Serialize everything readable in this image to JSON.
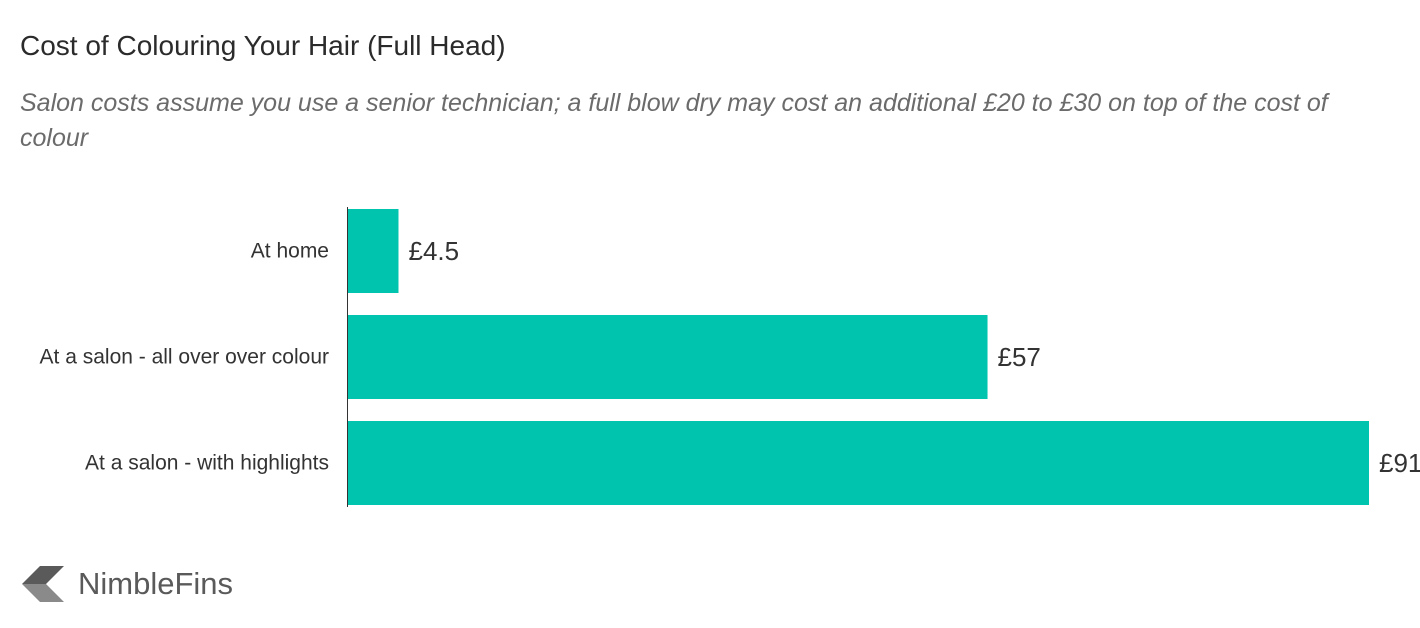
{
  "title": "Cost of Colouring Your Hair (Full Head)",
  "subtitle": "Salon costs assume you use a senior technician; a full blow dry may cost an additional £20 to £30 on top of the cost of colour",
  "brand": {
    "name": "NimbleFins",
    "logo_icon": "nimblefins-arrow-icon"
  },
  "chart_data": {
    "type": "bar",
    "orientation": "horizontal",
    "categories": [
      "At home",
      "At a salon - all over over colour",
      "At a salon - with highlights"
    ],
    "values": [
      4.5,
      57,
      91
    ],
    "value_labels": [
      "£4.5",
      "£57",
      "£91"
    ],
    "xlim": [
      0,
      91
    ],
    "grid": false,
    "bar_color": "#00c4ae"
  }
}
